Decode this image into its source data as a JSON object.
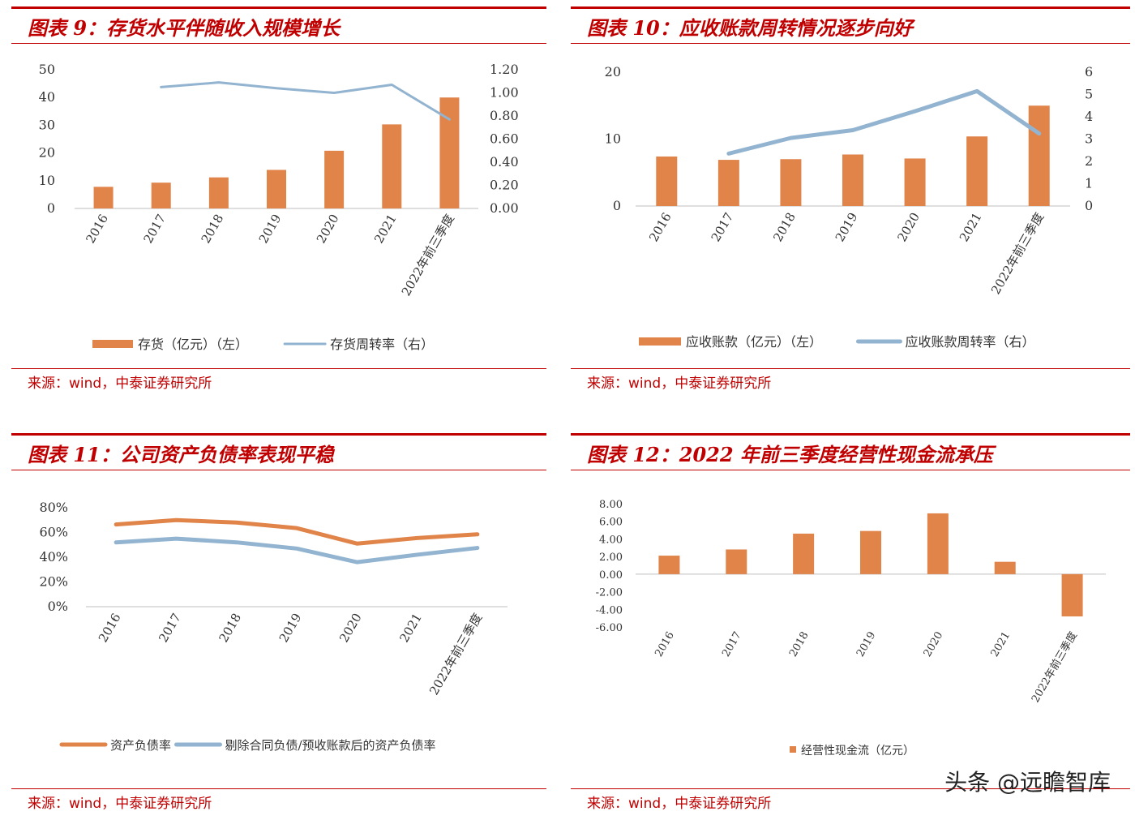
{
  "panels": [
    {
      "title": "图表 9：存货水平伴随收入规模增长",
      "source": "来源：wind，中泰证券研究所"
    },
    {
      "title": "图表 10：应收账款周转情况逐步向好",
      "source": "来源：wind，中泰证券研究所"
    },
    {
      "title": "图表 11：公司资产负债率表现平稳",
      "source": "来源：wind，中泰证券研究所"
    },
    {
      "title": "图表 12：2022 年前三季度经营性现金流承压",
      "source": "来源：wind，中泰证券研究所"
    }
  ],
  "watermark": "头条 @远瞻智库",
  "colors": {
    "bar": "#e0844a",
    "line_blue": "#92b4d0",
    "line_orange": "#e0844a",
    "title_red": "#c00000"
  },
  "chart_data": [
    {
      "type": "bar",
      "categories": [
        "2016",
        "2017",
        "2018",
        "2019",
        "2020",
        "2021",
        "2022年前三季度"
      ],
      "series": [
        {
          "name": "存货（亿元）（左）",
          "type": "bar",
          "axis": "left",
          "values": [
            7.8,
            9.3,
            11.2,
            13.9,
            20.8,
            30.3,
            40.0
          ]
        },
        {
          "name": "存货周转率（右）",
          "type": "line",
          "axis": "right",
          "values": [
            null,
            1.05,
            1.09,
            1.04,
            1.0,
            1.07,
            0.77
          ]
        }
      ],
      "yleft": {
        "ticks": [
          "0",
          "10",
          "20",
          "30",
          "40",
          "50"
        ],
        "lim": [
          0,
          50
        ]
      },
      "yright": {
        "ticks": [
          "0.00",
          "0.20",
          "0.40",
          "0.60",
          "0.80",
          "1.00",
          "1.20"
        ],
        "lim": [
          0,
          1.2
        ]
      },
      "legend": "bottom",
      "grid": false
    },
    {
      "type": "bar",
      "categories": [
        "2016",
        "2017",
        "2018",
        "2019",
        "2020",
        "2021",
        "2022年前三季度"
      ],
      "series": [
        {
          "name": "应收账款（亿元）（左）",
          "type": "bar",
          "axis": "left",
          "values": [
            7.4,
            6.9,
            7.0,
            7.7,
            7.1,
            10.4,
            15.0
          ]
        },
        {
          "name": "应收账款周转率（右）",
          "type": "line",
          "axis": "right",
          "values": [
            null,
            2.35,
            3.05,
            3.4,
            4.25,
            5.15,
            3.25
          ]
        }
      ],
      "yleft": {
        "ticks": [
          "0",
          "10",
          "20"
        ],
        "lim": [
          0,
          20
        ]
      },
      "yright": {
        "ticks": [
          "0",
          "1",
          "2",
          "3",
          "4",
          "5",
          "6"
        ],
        "lim": [
          0,
          6
        ]
      },
      "legend": "bottom",
      "grid": false
    },
    {
      "type": "line",
      "categories": [
        "2016",
        "2017",
        "2018",
        "2019",
        "2020",
        "2021",
        "2022年前三季度"
      ],
      "series": [
        {
          "name": "资产负债率",
          "color": "#e0844a",
          "values": [
            66.5,
            70.0,
            68.0,
            63.5,
            51.0,
            55.5,
            58.5
          ]
        },
        {
          "name": "剔除合同负债/预收账款后的资产负债率",
          "color": "#92b4d0",
          "values": [
            52.0,
            55.0,
            52.0,
            47.0,
            36.0,
            42.0,
            47.5
          ]
        }
      ],
      "yleft": {
        "ticks": [
          "0%",
          "20%",
          "40%",
          "60%",
          "80%"
        ],
        "lim": [
          0,
          80
        ]
      },
      "legend": "bottom",
      "grid": false
    },
    {
      "type": "bar",
      "categories": [
        "2016",
        "2017",
        "2018",
        "2019",
        "2020",
        "2021",
        "2022年前三季度"
      ],
      "series": [
        {
          "name": "经营性现金流（亿元）",
          "type": "bar",
          "values": [
            2.1,
            2.8,
            4.6,
            4.9,
            6.9,
            1.4,
            -4.8
          ]
        }
      ],
      "yleft": {
        "ticks": [
          "-6.00",
          "-4.00",
          "-2.00",
          "0.00",
          "2.00",
          "4.00",
          "6.00",
          "8.00"
        ],
        "lim": [
          -6,
          8
        ]
      },
      "legend": "bottom",
      "grid": false
    }
  ]
}
